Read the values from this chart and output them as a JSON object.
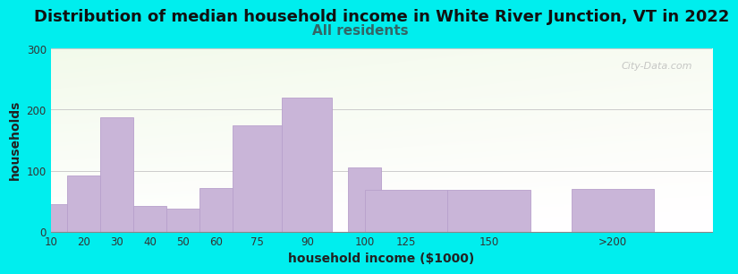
{
  "title": "Distribution of median household income in White River Junction, VT in 2022",
  "subtitle": "All residents",
  "xlabel": "household income ($1000)",
  "ylabel": "households",
  "background_color": "#00EEEE",
  "bar_color": "#C9B5D8",
  "bar_edge_color": "#B8A0CC",
  "categories": [
    "10",
    "20",
    "30",
    "40",
    "50",
    "60",
    "75",
    "90",
    "100",
    "125",
    "150",
    ">200"
  ],
  "values": [
    45,
    92,
    188,
    42,
    38,
    72,
    175,
    220,
    105,
    68,
    68,
    70
  ],
  "ylim": [
    0,
    300
  ],
  "yticks": [
    0,
    100,
    200,
    300
  ],
  "title_fontsize": 13,
  "subtitle_fontsize": 11,
  "subtitle_color": "#336666",
  "watermark": "City-Data.com",
  "left_edges": [
    5,
    15,
    25,
    35,
    45,
    55,
    67.5,
    82.5,
    100,
    112.5,
    137.5,
    175
  ],
  "bar_widths": [
    10,
    10,
    10,
    10,
    10,
    10,
    15,
    15,
    10,
    25,
    25,
    25
  ],
  "tick_positions": [
    10,
    20,
    30,
    40,
    50,
    60,
    75,
    90,
    100,
    125,
    150,
    ">200"
  ],
  "xlim_left": 5,
  "xlim_right": 205
}
